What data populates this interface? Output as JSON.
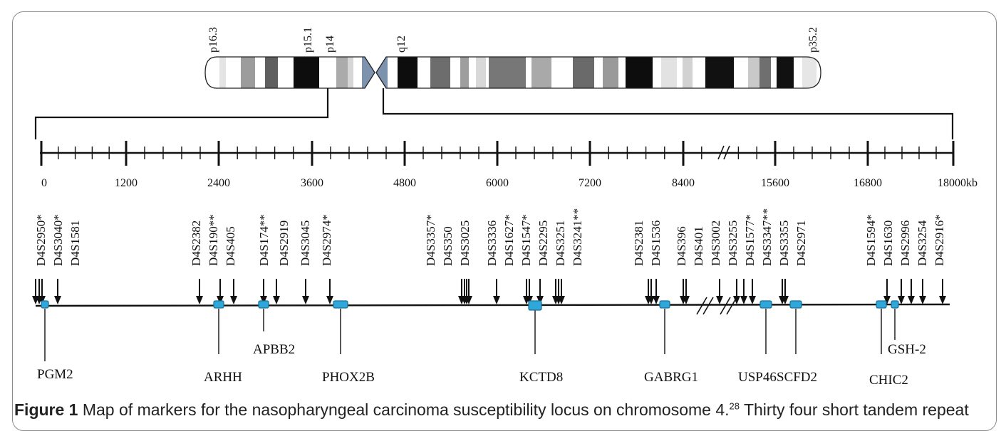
{
  "band_labels": [
    "p16.3",
    "p15.1",
    "p14",
    "q12",
    "p35.2"
  ],
  "scale": {
    "ticks": [
      "0",
      "1200",
      "2400",
      "3600",
      "4800",
      "6000",
      "7200",
      "8400",
      "15600",
      "16800",
      "18000kb"
    ]
  },
  "markers": [
    "D4S2950*",
    "D4S3040*",
    "D4S1581",
    "D4S2382",
    "D4S190**",
    "D4S405",
    "D4S174**",
    "D4S2919",
    "D4S3045",
    "D4S2974*",
    "D4S3357*",
    "D4S350",
    "D4S3025",
    "D4S3336",
    "D4S1627*",
    "D4S1547*",
    "D4S2295",
    "D4S3251",
    "D4S3241**",
    "D4S2381",
    "D4S1536",
    "D4S396",
    "D4S401",
    "D4S3002",
    "D4S3255",
    "D4S1577*",
    "D4S3347**",
    "D4S3355",
    "D4S2971",
    "D4S1594*",
    "D4S1630",
    "D4S2996",
    "D4S3254",
    "D4S2916*"
  ],
  "genes": [
    "PGM2",
    "ARHH",
    "APBB2",
    "PHOX2B",
    "KCTD8",
    "GABRG1",
    "USP46",
    "SCFD2",
    "CHIC2",
    "GSH-2"
  ],
  "caption": {
    "label": "Figure 1",
    "text": "Map of markers for the nasopharyngeal carcinoma susceptibility locus on chromosome 4.",
    "ref": "28",
    "text2": "Thirty four short tandem repeat"
  },
  "colors": {
    "gene_box": "#2fa7d9",
    "gene_box_border": "#1a6f99",
    "centromere": "#7d93ad",
    "line": "#111111"
  }
}
